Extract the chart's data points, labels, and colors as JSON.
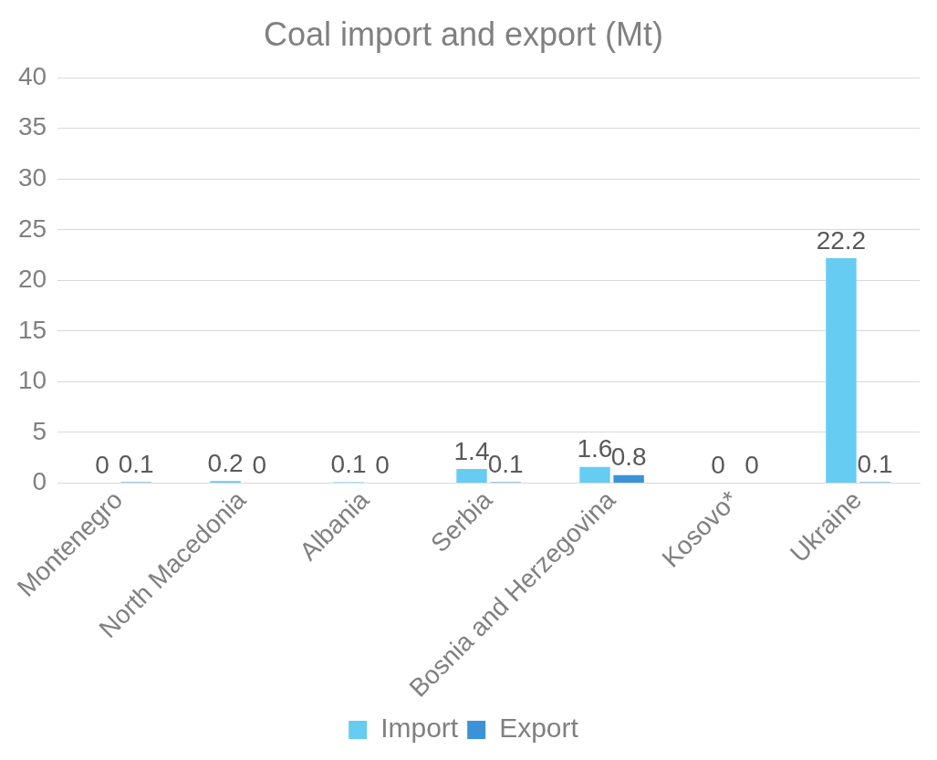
{
  "chart_data": {
    "type": "bar",
    "title": "Coal import and export (Mt)",
    "categories": [
      "Montenegro",
      "North Macedonia",
      "Albania",
      "Serbia",
      "Bosnia and Herzegovina",
      "Kosovo*",
      "Ukraine"
    ],
    "series": [
      {
        "name": "Import",
        "color": "#66ccf2",
        "values": [
          0,
          0.2,
          0.1,
          1.4,
          1.6,
          0,
          22.2
        ]
      },
      {
        "name": "Export",
        "color": "#3a93d8",
        "values": [
          0.1,
          0,
          0,
          0.1,
          0.8,
          0,
          0.1
        ]
      }
    ],
    "ylim": [
      0,
      40
    ],
    "yticks": [
      0,
      5,
      10,
      15,
      20,
      25,
      30,
      35,
      40
    ],
    "grid": "y",
    "legend": "bottom",
    "data_labels": true
  }
}
